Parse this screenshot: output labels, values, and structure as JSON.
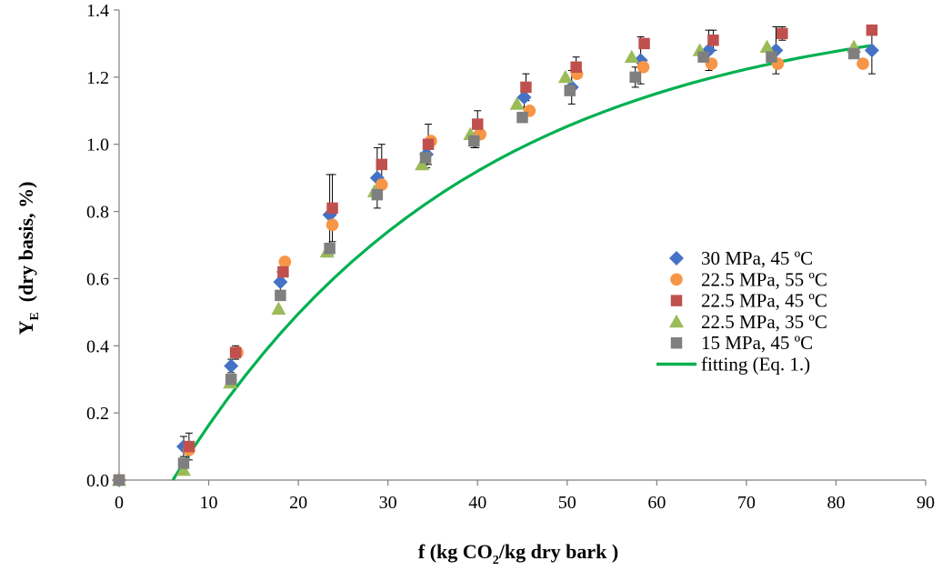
{
  "chart_data": {
    "type": "scatter",
    "xlabel": {
      "main": "f (kg CO",
      "sub": "2",
      "tail": "/kg dry bark )"
    },
    "ylabel": {
      "main": "Y",
      "sub": "E",
      "tail": "  (dry basis, %)"
    },
    "xlim": [
      0,
      90
    ],
    "ylim": [
      0,
      1.4
    ],
    "x_ticks": [
      "0",
      "10",
      "20",
      "30",
      "40",
      "50",
      "60",
      "70",
      "80",
      "90"
    ],
    "y_ticks": [
      "0.0",
      "0.2",
      "0.4",
      "0.6",
      "0.8",
      "1.0",
      "1.2",
      "1.4"
    ],
    "grid": false,
    "legend_position": "right",
    "series": [
      {
        "name": "30 MPa, 45 ºC",
        "marker": "diamond",
        "color": "#4472C4",
        "points": [
          [
            0,
            0
          ],
          [
            7.2,
            0.1
          ],
          [
            12.5,
            0.34
          ],
          [
            18,
            0.59
          ],
          [
            23.5,
            0.79
          ],
          [
            28.8,
            0.9
          ],
          [
            34.3,
            0.97
          ],
          [
            39.8,
            1.02
          ],
          [
            45.2,
            1.14
          ],
          [
            50.5,
            1.17
          ],
          [
            58.2,
            1.25
          ],
          [
            65.8,
            1.28
          ],
          [
            73.3,
            1.28
          ],
          [
            84,
            1.28
          ]
        ],
        "errors": [
          0,
          0.03,
          0.02,
          0.03,
          0.12,
          0.09,
          0.04,
          0.03,
          0.03,
          0.05,
          0.07,
          0.06,
          0.07,
          0.07
        ]
      },
      {
        "name": "22.5 MPa, 55 ºC",
        "marker": "circle",
        "color": "#F79646",
        "points": [
          [
            0,
            0
          ],
          [
            7.8,
            0.09
          ],
          [
            13.2,
            0.38
          ],
          [
            18.5,
            0.65
          ],
          [
            23.8,
            0.76
          ],
          [
            29.3,
            0.88
          ],
          [
            34.8,
            1.01
          ],
          [
            40.3,
            1.03
          ],
          [
            45.8,
            1.1
          ],
          [
            51.1,
            1.21
          ],
          [
            58.5,
            1.23
          ],
          [
            66.1,
            1.24
          ],
          [
            73.5,
            1.24
          ],
          [
            83,
            1.24
          ]
        ],
        "errors": [
          0,
          0,
          0,
          0,
          0,
          0,
          0,
          0,
          0,
          0,
          0,
          0,
          0,
          0
        ]
      },
      {
        "name": "22.5 MPa, 45 ºC",
        "marker": "square",
        "color": "#C0504D",
        "points": [
          [
            0,
            0
          ],
          [
            7.8,
            0.1
          ],
          [
            13,
            0.38
          ],
          [
            18.3,
            0.62
          ],
          [
            23.8,
            0.81
          ],
          [
            29.3,
            0.94
          ],
          [
            34.5,
            1
          ],
          [
            40,
            1.06
          ],
          [
            45.4,
            1.17
          ],
          [
            51,
            1.23
          ],
          [
            58.6,
            1.3
          ],
          [
            66.3,
            1.31
          ],
          [
            74,
            1.33
          ],
          [
            84,
            1.34
          ]
        ],
        "errors": [
          0,
          0.04,
          0.02,
          0.03,
          0.1,
          0.06,
          0.06,
          0.04,
          0.04,
          0.03,
          0,
          0.03,
          0.02,
          0
        ]
      },
      {
        "name": "22.5 MPa, 35 ºC",
        "marker": "triangle",
        "color": "#9BBB59",
        "points": [
          [
            0,
            0
          ],
          [
            7.2,
            0.03
          ],
          [
            12.4,
            0.29
          ],
          [
            17.8,
            0.51
          ],
          [
            23.2,
            0.68
          ],
          [
            28.5,
            0.86
          ],
          [
            33.8,
            0.94
          ],
          [
            39.2,
            1.03
          ],
          [
            44.4,
            1.12
          ],
          [
            49.8,
            1.2
          ],
          [
            57.2,
            1.26
          ],
          [
            64.8,
            1.28
          ],
          [
            72.3,
            1.29
          ],
          [
            82,
            1.29
          ]
        ],
        "errors": [
          0,
          0,
          0,
          0,
          0,
          0,
          0,
          0,
          0,
          0,
          0,
          0,
          0,
          0
        ]
      },
      {
        "name": "15 MPa, 45 ºC",
        "marker": "square",
        "color": "#7F7F7F",
        "points": [
          [
            0,
            0
          ],
          [
            7.2,
            0.05
          ],
          [
            12.5,
            0.3
          ],
          [
            18,
            0.55
          ],
          [
            23.5,
            0.69
          ],
          [
            28.8,
            0.85
          ],
          [
            34.2,
            0.96
          ],
          [
            39.6,
            1.01
          ],
          [
            45,
            1.08
          ],
          [
            50.3,
            1.16
          ],
          [
            57.6,
            1.2
          ],
          [
            65.2,
            1.26
          ],
          [
            72.8,
            1.26
          ],
          [
            82,
            1.27
          ]
        ],
        "errors": [
          0,
          0,
          0,
          0,
          0,
          0,
          0,
          0.02,
          0,
          0,
          0.03,
          0,
          0,
          0
        ]
      }
    ],
    "fit": {
      "name": "fitting (Eq. 1.)",
      "color": "#00B050",
      "points": [
        [
          6,
          0
        ],
        [
          8,
          0.0843
        ],
        [
          10,
          0.1636
        ],
        [
          12,
          0.2382
        ],
        [
          14,
          0.3085
        ],
        [
          16,
          0.3745
        ],
        [
          18,
          0.4367
        ],
        [
          20,
          0.4952
        ],
        [
          22,
          0.5502
        ],
        [
          24,
          0.602
        ],
        [
          26,
          0.6508
        ],
        [
          28,
          0.6966
        ],
        [
          30,
          0.7398
        ],
        [
          32,
          0.7804
        ],
        [
          34,
          0.8186
        ],
        [
          36,
          0.8545
        ],
        [
          38,
          0.8884
        ],
        [
          40,
          0.9202
        ],
        [
          42,
          0.9502
        ],
        [
          44,
          0.9784
        ],
        [
          46,
          1.0049
        ],
        [
          48,
          1.0298
        ],
        [
          50,
          1.0533
        ],
        [
          52,
          1.0754
        ],
        [
          54,
          1.0962
        ],
        [
          56,
          1.1157
        ],
        [
          58,
          1.1341
        ],
        [
          60,
          1.1514
        ],
        [
          62,
          1.1677
        ],
        [
          64,
          1.183
        ],
        [
          66,
          1.1974
        ],
        [
          68,
          1.211
        ],
        [
          70,
          1.2237
        ],
        [
          72,
          1.2357
        ],
        [
          74,
          1.247
        ],
        [
          76,
          1.2577
        ],
        [
          78,
          1.2677
        ],
        [
          80,
          1.2771
        ],
        [
          82,
          1.2859
        ],
        [
          84,
          1.2943
        ]
      ]
    }
  }
}
